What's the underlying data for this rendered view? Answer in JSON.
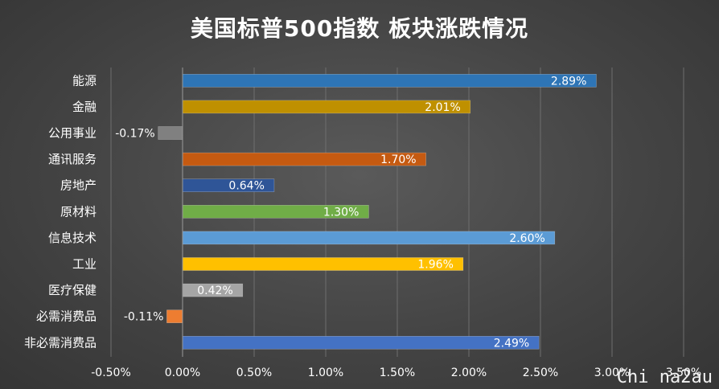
{
  "chart_data": {
    "type": "bar",
    "orientation": "horizontal",
    "title": "美国标普500指数 板块涨跌情况",
    "categories": [
      "能源",
      "金融",
      "公用事业",
      "通讯服务",
      "房地产",
      "原材料",
      "信息技术",
      "工业",
      "医疗保健",
      "必需消费品",
      "非必需消费品"
    ],
    "values": [
      2.89,
      2.01,
      -0.17,
      1.7,
      0.64,
      1.3,
      2.6,
      1.96,
      0.42,
      -0.11,
      2.49
    ],
    "value_labels": [
      "2.89%",
      "2.01%",
      "-0.17%",
      "1.70%",
      "0.64%",
      "1.30%",
      "2.60%",
      "1.96%",
      "0.42%",
      "-0.11%",
      "2.49%"
    ],
    "colors": [
      "#2e75b6",
      "#bf9000",
      "#808080",
      "#c55a11",
      "#2f5597",
      "#70ad47",
      "#5b9bd5",
      "#ffc000",
      "#a5a5a5",
      "#ed7d31",
      "#4472c4"
    ],
    "xlim": [
      -0.5,
      3.5
    ],
    "xticks": [
      "-0.50%",
      "0.00%",
      "0.50%",
      "1.00%",
      "1.50%",
      "2.00%",
      "2.50%",
      "3.00%",
      "3.50%"
    ],
    "xtick_values": [
      -0.5,
      0,
      0.5,
      1.0,
      1.5,
      2.0,
      2.5,
      3.0,
      3.5
    ],
    "grid": true
  },
  "watermark": "Chi na2au"
}
